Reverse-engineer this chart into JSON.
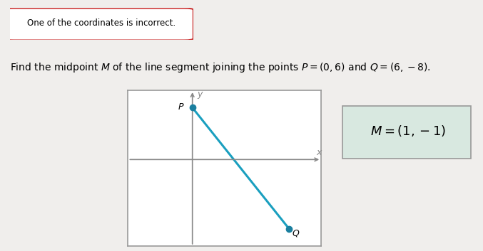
{
  "badge_text": "One of the coordinates is incorrect.",
  "title_text": "Find the midpoint $M$ of the line segment joining the points $P = (0, 6)$ and $Q = (6, -8)$.",
  "answer_text": "M = (1, −1)",
  "P": [
    0,
    6
  ],
  "Q": [
    6,
    -8
  ],
  "line_color": "#1a9fbf",
  "point_color": "#1a7f9f",
  "axis_color": "#888888",
  "box_edge_color": "#999999",
  "fig_bg": "#f0eeec",
  "plot_bg": "#ffffff",
  "answer_bg": "#d8e8e0",
  "answer_edge": "#999999",
  "xlim": [
    -4,
    8
  ],
  "ylim": [
    -10,
    8
  ],
  "badge_edge": "#cc3333",
  "badge_bg": "#ffffff"
}
